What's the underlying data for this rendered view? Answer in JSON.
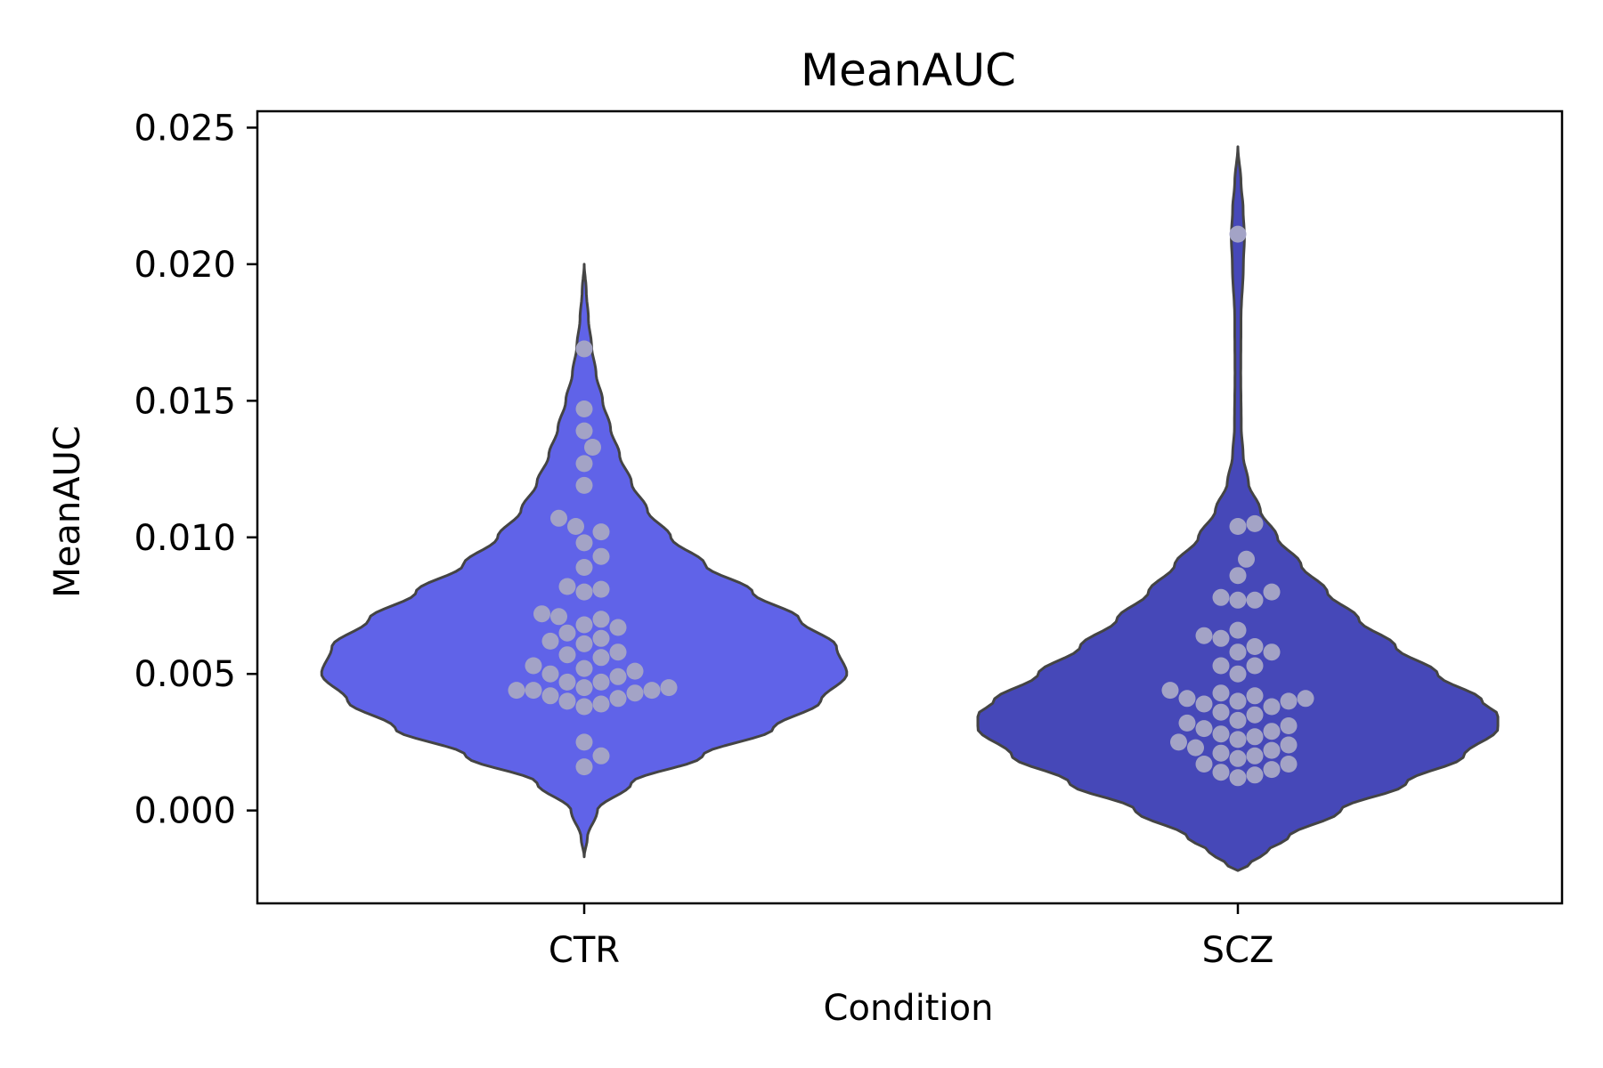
{
  "chart_data": {
    "type": "violin",
    "title": "MeanAUC",
    "xlabel": "Condition",
    "ylabel": "MeanAUC",
    "categories": [
      "CTR",
      "SCZ"
    ],
    "ylim": [
      -0.0034,
      0.0256
    ],
    "yticks": [
      "0.000",
      "0.005",
      "0.010",
      "0.015",
      "0.020",
      "0.025"
    ],
    "colors": {
      "CTR": "#6063e8",
      "SCZ": "#4648b8",
      "points": "#a3a3c6",
      "outline": "#444444"
    },
    "violins": [
      {
        "category": "CTR",
        "range": [
          -0.0017,
          0.02
        ],
        "widths": [
          [
            -0.0017,
            0.0
          ],
          [
            -0.001,
            0.012
          ],
          [
            0.0,
            0.05
          ],
          [
            0.001,
            0.18
          ],
          [
            0.002,
            0.45
          ],
          [
            0.003,
            0.72
          ],
          [
            0.004,
            0.9
          ],
          [
            0.005,
            1.0
          ],
          [
            0.006,
            0.96
          ],
          [
            0.007,
            0.82
          ],
          [
            0.008,
            0.64
          ],
          [
            0.009,
            0.46
          ],
          [
            0.01,
            0.33
          ],
          [
            0.011,
            0.24
          ],
          [
            0.012,
            0.18
          ],
          [
            0.013,
            0.135
          ],
          [
            0.014,
            0.1
          ],
          [
            0.015,
            0.07
          ],
          [
            0.016,
            0.045
          ],
          [
            0.017,
            0.028
          ],
          [
            0.018,
            0.016
          ],
          [
            0.019,
            0.008
          ],
          [
            0.02,
            0.0
          ]
        ],
        "points": [
          0.0169,
          0.0147,
          0.0139,
          0.0133,
          0.0127,
          0.0119,
          0.0107,
          0.0104,
          0.0102,
          0.0098,
          0.0093,
          0.0089,
          0.0082,
          0.0081,
          0.008,
          0.0072,
          0.0071,
          0.007,
          0.0068,
          0.0067,
          0.0065,
          0.0063,
          0.0062,
          0.0061,
          0.0058,
          0.0057,
          0.0056,
          0.0053,
          0.0052,
          0.0051,
          0.005,
          0.0049,
          0.0047,
          0.0047,
          0.0045,
          0.0045,
          0.0044,
          0.0044,
          0.0044,
          0.0043,
          0.0042,
          0.0041,
          0.004,
          0.0039,
          0.0038,
          0.0025,
          0.002,
          0.0016
        ]
      },
      {
        "category": "SCZ",
        "range": [
          -0.0022,
          0.0243
        ],
        "widths": [
          [
            -0.0022,
            0.0
          ],
          [
            -0.002,
            0.04
          ],
          [
            -0.0015,
            0.11
          ],
          [
            -0.001,
            0.19
          ],
          [
            0.0,
            0.39
          ],
          [
            0.001,
            0.64
          ],
          [
            0.002,
            0.86
          ],
          [
            0.003,
            0.99
          ],
          [
            0.0035,
            0.99
          ],
          [
            0.004,
            0.93
          ],
          [
            0.005,
            0.76
          ],
          [
            0.006,
            0.6
          ],
          [
            0.007,
            0.46
          ],
          [
            0.008,
            0.34
          ],
          [
            0.009,
            0.24
          ],
          [
            0.01,
            0.15
          ],
          [
            0.011,
            0.085
          ],
          [
            0.012,
            0.04
          ],
          [
            0.013,
            0.02
          ],
          [
            0.014,
            0.013
          ],
          [
            0.016,
            0.011
          ],
          [
            0.018,
            0.012
          ],
          [
            0.02,
            0.021
          ],
          [
            0.021,
            0.025
          ],
          [
            0.022,
            0.02
          ],
          [
            0.023,
            0.012
          ],
          [
            0.0243,
            0.0
          ]
        ],
        "points": [
          0.0211,
          0.0105,
          0.0104,
          0.0092,
          0.0086,
          0.008,
          0.0078,
          0.0077,
          0.0077,
          0.0066,
          0.0064,
          0.0063,
          0.006,
          0.0058,
          0.0058,
          0.0053,
          0.0053,
          0.005,
          0.0044,
          0.0043,
          0.0042,
          0.0041,
          0.0041,
          0.004,
          0.004,
          0.0039,
          0.0038,
          0.0036,
          0.0035,
          0.0033,
          0.0032,
          0.0031,
          0.003,
          0.0029,
          0.0028,
          0.0027,
          0.0026,
          0.0025,
          0.0024,
          0.0023,
          0.0022,
          0.0021,
          0.002,
          0.0019,
          0.0017,
          0.0017,
          0.0015,
          0.0014,
          0.0013,
          0.0012
        ]
      }
    ]
  }
}
